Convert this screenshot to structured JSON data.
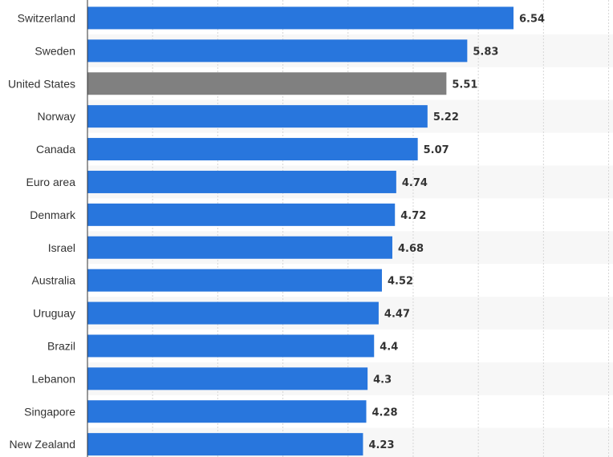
{
  "chart_data": {
    "type": "bar",
    "orientation": "horizontal",
    "categories": [
      "Switzerland",
      "Sweden",
      "United States",
      "Norway",
      "Canada",
      "Euro area",
      "Denmark",
      "Israel",
      "Australia",
      "Uruguay",
      "Brazil",
      "Lebanon",
      "Singapore",
      "New Zealand"
    ],
    "values": [
      6.54,
      5.83,
      5.51,
      5.22,
      5.07,
      4.74,
      4.72,
      4.68,
      4.52,
      4.47,
      4.4,
      4.3,
      4.28,
      4.23
    ],
    "value_labels": [
      "6.54",
      "5.83",
      "5.51",
      "5.22",
      "5.07",
      "4.74",
      "4.72",
      "4.68",
      "4.52",
      "4.47",
      "4.4",
      "4.3",
      "4.28",
      "4.23"
    ],
    "highlight_category": "United States",
    "xlim": [
      0,
      8
    ],
    "grid": true,
    "title": "",
    "xlabel": "",
    "ylabel": "",
    "colors": {
      "bar": "#2876dd",
      "highlight": "#808080",
      "band": "#f7f7f7",
      "grid": "#d6d6d6",
      "axis": "#333333"
    }
  }
}
